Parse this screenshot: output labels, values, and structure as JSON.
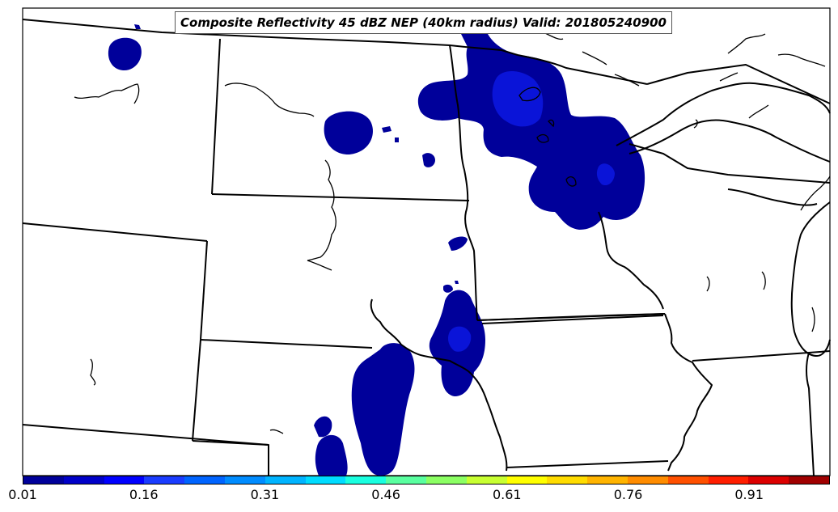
{
  "title": "Composite Reflectivity 45 dBZ NEP (40km radius) Valid: 201805240900",
  "colorbar": {
    "colors": [
      "#00009a",
      "#0000c8",
      "#0000ff",
      "#1a3cff",
      "#0064ff",
      "#008cff",
      "#00b4ff",
      "#00dcff",
      "#1affe0",
      "#5affa0",
      "#8cff64",
      "#c8ff32",
      "#ffff00",
      "#ffdc00",
      "#ffb400",
      "#ff8c00",
      "#ff5000",
      "#ff1e00",
      "#dc0000",
      "#a00000"
    ],
    "ticks": [
      "0.01",
      "0.16",
      "0.31",
      "0.46",
      "0.61",
      "0.76",
      "0.91"
    ]
  },
  "colors": {
    "low_probability": "#00009a",
    "mid_probability": "#0a14d8",
    "border": "#000000"
  }
}
